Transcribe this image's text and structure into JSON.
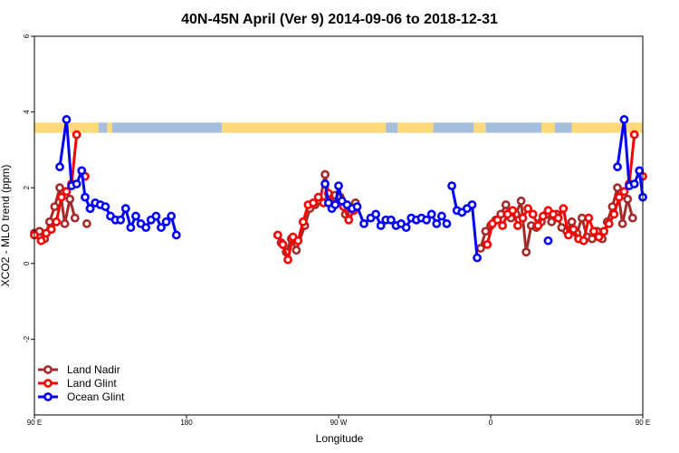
{
  "chart_data": {
    "type": "line",
    "title": "40N-45N April (Ver 9)   2014-09-06 to 2018-12-31",
    "xlabel": "Longitude",
    "ylabel": "XCO2 - MLO trend (ppm)",
    "xlim": [
      90,
      450
    ],
    "ylim": [
      -4,
      6
    ],
    "x_ticks": [
      {
        "value": 90,
        "label": "90 E"
      },
      {
        "value": 180,
        "label": "180"
      },
      {
        "value": 270,
        "label": "90 W"
      },
      {
        "value": 360,
        "label": "0"
      },
      {
        "value": 450,
        "label": "90 E"
      },
      {
        "value": 540,
        "label": "180"
      }
    ],
    "y_ticks": [
      {
        "value": -2,
        "label": "-2"
      },
      {
        "value": 0,
        "label": "0"
      },
      {
        "value": 2,
        "label": "2"
      },
      {
        "value": 4,
        "label": "4"
      },
      {
        "value": 6,
        "label": "6"
      }
    ],
    "surface_band": {
      "y_range": [
        3.45,
        3.72
      ],
      "land_color": "#fdd97c",
      "ocean_color": "#a6bddb",
      "segments": [
        {
          "x0": 90,
          "x1": 128,
          "kind": "land"
        },
        {
          "x0": 128,
          "x1": 133,
          "kind": "ocean"
        },
        {
          "x0": 133,
          "x1": 136,
          "kind": "land"
        },
        {
          "x0": 136,
          "x1": 201,
          "kind": "ocean"
        },
        {
          "x0": 201,
          "x1": 298,
          "kind": "land"
        },
        {
          "x0": 298,
          "x1": 305,
          "kind": "ocean"
        },
        {
          "x0": 305,
          "x1": 326,
          "kind": "land"
        },
        {
          "x0": 326,
          "x1": 350,
          "kind": "ocean"
        },
        {
          "x0": 350,
          "x1": 357,
          "kind": "land"
        },
        {
          "x0": 357,
          "x1": 390,
          "kind": "ocean"
        },
        {
          "x0": 390,
          "x1": 398,
          "kind": "land"
        },
        {
          "x0": 398,
          "x1": 408,
          "kind": "ocean"
        },
        {
          "x0": 408,
          "x1": 450,
          "kind": "land"
        }
      ]
    },
    "legend": {
      "position": "bottom-left"
    },
    "series": [
      {
        "name": "Land Nadir",
        "color": "#a52a2a",
        "segments": [
          [
            [
              90,
              0.8
            ],
            [
              93,
              0.85
            ],
            [
              96,
              0.65
            ],
            [
              99,
              1.1
            ],
            [
              102,
              1.5
            ],
            [
              105,
              2.0
            ],
            [
              108,
              1.05
            ],
            [
              111,
              1.7
            ],
            [
              114,
              1.2
            ]
          ],
          [
            [
              121,
              1.05
            ]
          ],
          [
            [
              236,
              0.55
            ],
            [
              239,
              0.3
            ],
            [
              242,
              0.65
            ],
            [
              245,
              0.35
            ],
            [
              250,
              1.0
            ],
            [
              253,
              1.45
            ],
            [
              256,
              1.55
            ],
            [
              259,
              1.65
            ],
            [
              262,
              2.35
            ],
            [
              265,
              1.65
            ],
            [
              268,
              1.8
            ],
            [
              271,
              1.75
            ],
            [
              274,
              1.3
            ],
            [
              277,
              1.45
            ],
            [
              280,
              1.6
            ]
          ],
          [
            [
              354,
              0.4
            ],
            [
              357,
              0.85
            ],
            [
              360,
              1.0
            ],
            [
              363,
              1.15
            ],
            [
              366,
              1.3
            ],
            [
              369,
              1.55
            ],
            [
              372,
              1.2
            ],
            [
              375,
              1.3
            ],
            [
              378,
              1.65
            ],
            [
              381,
              0.3
            ],
            [
              384,
              1.0
            ],
            [
              387,
              0.95
            ],
            [
              390,
              1.1
            ],
            [
              393,
              1.3
            ],
            [
              396,
              1.1
            ],
            [
              399,
              1.3
            ],
            [
              402,
              0.95
            ],
            [
              405,
              0.85
            ],
            [
              408,
              1.1
            ],
            [
              411,
              0.8
            ],
            [
              414,
              1.2
            ],
            [
              417,
              0.7
            ],
            [
              420,
              0.65
            ],
            [
              423,
              0.85
            ],
            [
              426,
              0.65
            ],
            [
              429,
              1.1
            ],
            [
              432,
              1.5
            ],
            [
              435,
              2.0
            ],
            [
              438,
              1.05
            ],
            [
              441,
              1.7
            ],
            [
              444,
              1.2
            ]
          ],
          [
            [
              451,
              1.05
            ]
          ]
        ]
      },
      {
        "name": "Land Glint",
        "color": "#ff0000",
        "segments": [
          [
            [
              90,
              0.75
            ],
            [
              94,
              0.6
            ],
            [
              97,
              0.8
            ],
            [
              100,
              0.9
            ],
            [
              103,
              1.1
            ],
            [
              106,
              1.75
            ],
            [
              109,
              1.9
            ],
            [
              112,
              2.1
            ],
            [
              115,
              3.4
            ]
          ],
          [
            [
              120,
              2.3
            ]
          ],
          [
            [
              234,
              0.75
            ],
            [
              237,
              0.5
            ],
            [
              240,
              0.1
            ],
            [
              243,
              0.7
            ],
            [
              246,
              0.6
            ],
            [
              249,
              1.1
            ],
            [
              252,
              1.55
            ],
            [
              255,
              1.6
            ],
            [
              258,
              1.75
            ],
            [
              261,
              1.6
            ],
            [
              264,
              1.85
            ],
            [
              267,
              1.55
            ],
            [
              270,
              1.6
            ],
            [
              273,
              1.5
            ],
            [
              276,
              1.15
            ],
            [
              279,
              1.4
            ]
          ],
          [
            [
              358,
              0.5
            ],
            [
              361,
              1.05
            ],
            [
              364,
              1.15
            ],
            [
              367,
              1.0
            ],
            [
              370,
              1.3
            ],
            [
              373,
              1.4
            ],
            [
              376,
              1.0
            ],
            [
              379,
              1.2
            ],
            [
              382,
              1.45
            ],
            [
              385,
              1.3
            ],
            [
              388,
              1.0
            ],
            [
              391,
              1.25
            ],
            [
              394,
              1.4
            ],
            [
              397,
              1.3
            ],
            [
              400,
              1.2
            ],
            [
              403,
              1.45
            ],
            [
              406,
              0.75
            ],
            [
              409,
              0.9
            ],
            [
              412,
              0.65
            ],
            [
              415,
              0.6
            ],
            [
              418,
              1.2
            ],
            [
              421,
              0.85
            ],
            [
              424,
              0.7
            ],
            [
              427,
              0.85
            ],
            [
              430,
              1.05
            ],
            [
              433,
              1.3
            ],
            [
              436,
              1.75
            ],
            [
              439,
              1.9
            ],
            [
              442,
              2.1
            ],
            [
              445,
              3.4
            ]
          ],
          [
            [
              450,
              2.3
            ]
          ]
        ]
      },
      {
        "name": "Ocean Glint",
        "color": "#0000ff",
        "segments": [
          [
            [
              123,
              1.45
            ],
            [
              126,
              1.6
            ],
            [
              129,
              1.55
            ],
            [
              132,
              1.5
            ],
            [
              135,
              1.25
            ],
            [
              138,
              1.15
            ],
            [
              141,
              1.15
            ],
            [
              144,
              1.45
            ],
            [
              147,
              0.95
            ],
            [
              150,
              1.25
            ],
            [
              153,
              1.05
            ],
            [
              156,
              0.95
            ],
            [
              159,
              1.15
            ],
            [
              162,
              1.25
            ],
            [
              165,
              0.95
            ],
            [
              168,
              1.1
            ],
            [
              171,
              1.25
            ],
            [
              174,
              0.75
            ]
          ],
          [
            [
              105,
              2.55
            ],
            [
              109,
              3.8
            ],
            [
              112,
              2.05
            ],
            [
              115,
              2.1
            ],
            [
              118,
              2.45
            ],
            [
              120,
              1.75
            ],
            [
              123,
              1.45
            ]
          ],
          [
            [
              262,
              2.1
            ],
            [
              264,
              1.6
            ],
            [
              266,
              1.45
            ],
            [
              268,
              1.55
            ],
            [
              270,
              2.05
            ],
            [
              272,
              1.65
            ],
            [
              275,
              1.55
            ],
            [
              278,
              1.45
            ],
            [
              281,
              1.5
            ],
            [
              285,
              1.05
            ],
            [
              289,
              1.2
            ],
            [
              292,
              1.3
            ],
            [
              295,
              1.0
            ],
            [
              298,
              1.15
            ],
            [
              301,
              1.15
            ],
            [
              304,
              1.0
            ],
            [
              307,
              1.05
            ],
            [
              310,
              0.95
            ],
            [
              313,
              1.2
            ],
            [
              316,
              1.15
            ],
            [
              319,
              1.2
            ],
            [
              322,
              1.15
            ],
            [
              325,
              1.3
            ],
            [
              328,
              1.05
            ],
            [
              331,
              1.25
            ],
            [
              334,
              1.05
            ]
          ],
          [
            [
              337,
              2.05
            ],
            [
              340,
              1.4
            ],
            [
              343,
              1.35
            ],
            [
              346,
              1.45
            ],
            [
              349,
              1.55
            ],
            [
              352,
              0.15
            ]
          ],
          [
            [
              435,
              2.55
            ],
            [
              439,
              3.8
            ],
            [
              442,
              2.05
            ],
            [
              445,
              2.1
            ],
            [
              448,
              2.45
            ],
            [
              450,
              1.75
            ],
            [
              453,
              1.45
            ],
            [
              456,
              1.6
            ],
            [
              459,
              1.55
            ],
            [
              462,
              1.5
            ],
            [
              465,
              1.25
            ],
            [
              468,
              1.15
            ],
            [
              471,
              1.15
            ],
            [
              474,
              1.45
            ]
          ],
          [
            [
              394,
              0.6
            ]
          ]
        ]
      }
    ]
  }
}
